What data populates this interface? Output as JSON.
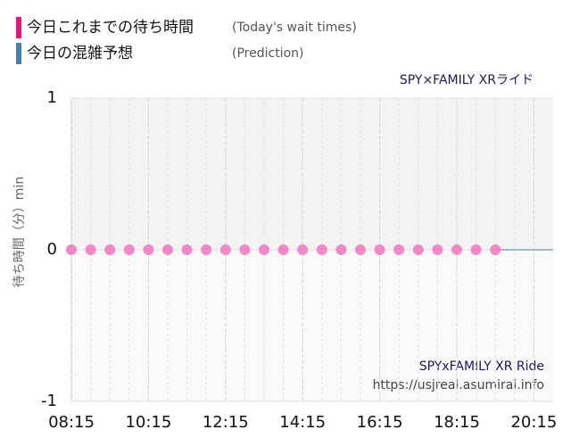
{
  "chart_data": {
    "type": "scatter",
    "annotations": [
      "SPY×FAMILY XRライド",
      "SPYxFAMILY XR Ride",
      "https://usjreal.asumirai.info"
    ],
    "y_label": "待ち時間（分）min",
    "series": [
      {
        "name": "今日これまでの待ち時間",
        "note": "(Today's wait times)",
        "color": "#f07cc0",
        "x": [
          8.25,
          8.75,
          9.25,
          9.75,
          10.25,
          10.75,
          11.25,
          11.75,
          12.25,
          12.75,
          13.25,
          13.75,
          14.25,
          14.75,
          15.25,
          15.75,
          16.25,
          16.75,
          17.25,
          17.75,
          18.25,
          18.75,
          19.25
        ],
        "values": [
          0,
          0,
          0,
          0,
          0,
          0,
          0,
          0,
          0,
          0,
          0,
          0,
          0,
          0,
          0,
          0,
          0,
          0,
          0,
          0,
          0,
          0,
          0
        ]
      },
      {
        "name": "今日の混雑予想",
        "note": "(Prediction)",
        "color": "#9fb8d0",
        "x": [
          19.25,
          20.75
        ],
        "values": [
          0,
          0
        ]
      }
    ],
    "xlim": [
      8.25,
      20.75
    ],
    "xticks": [
      {
        "value": 8.25,
        "label": "08:15"
      },
      {
        "value": 10.25,
        "label": "10:15"
      },
      {
        "value": 12.25,
        "label": "12:15"
      },
      {
        "value": 14.25,
        "label": "14:15"
      },
      {
        "value": 16.25,
        "label": "16:15"
      },
      {
        "value": 18.25,
        "label": "18:15"
      },
      {
        "value": 20.25,
        "label": "20:15"
      }
    ],
    "ylim": [
      -1,
      1
    ],
    "yticks": [
      1,
      0,
      -1
    ],
    "grid": true
  }
}
